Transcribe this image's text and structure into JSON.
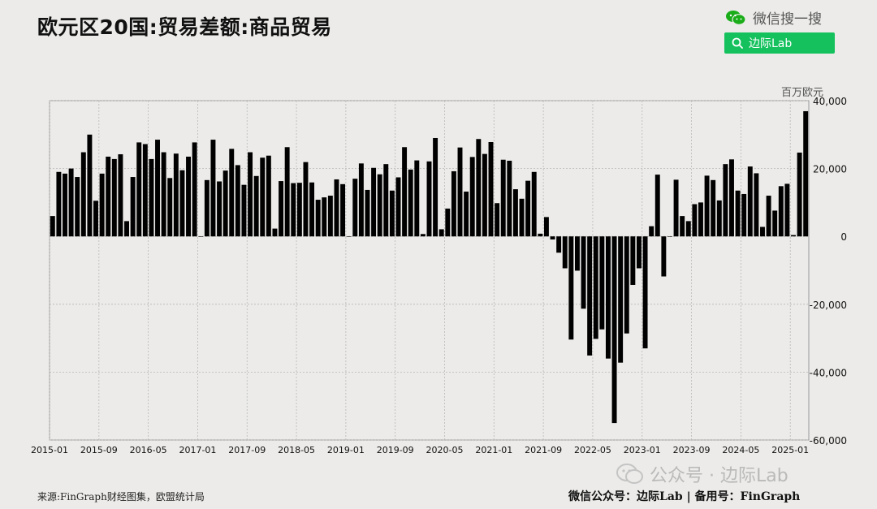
{
  "header": {
    "title": "欧元区20国:贸易差额:商品贸易",
    "wechat_label": "微信搜一搜",
    "search_label": "边际Lab"
  },
  "chart_data": {
    "type": "bar",
    "title": "欧元区20国:贸易差额:商品贸易",
    "unit": "百万欧元",
    "ylim": [
      -60000,
      40000
    ],
    "y_ticks": [
      40000,
      20000,
      0,
      -20000,
      -40000,
      -60000
    ],
    "y_tick_labels": [
      "40,000",
      "20,000",
      "0",
      "-20,000",
      "-40,000",
      "-60,000"
    ],
    "x_tick_labels": [
      "2015-01",
      "2015-09",
      "2016-05",
      "2017-01",
      "2017-09",
      "2018-05",
      "2019-01",
      "2019-09",
      "2020-05",
      "2021-01",
      "2021-09",
      "2022-05",
      "2023-01",
      "2023-09",
      "2024-05",
      "2025-01"
    ],
    "grid": true,
    "x": [
      "2015-01",
      "2015-02",
      "2015-03",
      "2015-04",
      "2015-05",
      "2015-06",
      "2015-07",
      "2015-08",
      "2015-09",
      "2015-10",
      "2015-11",
      "2015-12",
      "2016-01",
      "2016-02",
      "2016-03",
      "2016-04",
      "2016-05",
      "2016-06",
      "2016-07",
      "2016-08",
      "2016-09",
      "2016-10",
      "2016-11",
      "2016-12",
      "2017-01",
      "2017-02",
      "2017-03",
      "2017-04",
      "2017-05",
      "2017-06",
      "2017-07",
      "2017-08",
      "2017-09",
      "2017-10",
      "2017-11",
      "2017-12",
      "2018-01",
      "2018-02",
      "2018-03",
      "2018-04",
      "2018-05",
      "2018-06",
      "2018-07",
      "2018-08",
      "2018-09",
      "2018-10",
      "2018-11",
      "2018-12",
      "2019-01",
      "2019-02",
      "2019-03",
      "2019-04",
      "2019-05",
      "2019-06",
      "2019-07",
      "2019-08",
      "2019-09",
      "2019-10",
      "2019-11",
      "2019-12",
      "2020-01",
      "2020-02",
      "2020-03",
      "2020-04",
      "2020-05",
      "2020-06",
      "2020-07",
      "2020-08",
      "2020-09",
      "2020-10",
      "2020-11",
      "2020-12",
      "2021-01",
      "2021-02",
      "2021-03",
      "2021-04",
      "2021-05",
      "2021-06",
      "2021-07",
      "2021-08",
      "2021-09",
      "2021-10",
      "2021-11",
      "2021-12",
      "2022-01",
      "2022-02",
      "2022-03",
      "2022-04",
      "2022-05",
      "2022-06",
      "2022-07",
      "2022-08",
      "2022-09",
      "2022-10",
      "2022-11",
      "2022-12",
      "2023-01",
      "2023-02",
      "2023-03",
      "2023-04",
      "2023-05",
      "2023-06",
      "2023-07",
      "2023-08",
      "2023-09",
      "2023-10",
      "2023-11",
      "2023-12",
      "2024-01",
      "2024-02",
      "2024-03",
      "2024-04",
      "2024-05",
      "2024-06",
      "2024-07",
      "2024-08",
      "2024-09",
      "2024-10",
      "2024-11",
      "2024-12",
      "2025-01",
      "2025-02",
      "2025-03"
    ],
    "values": [
      6000,
      19000,
      18500,
      20000,
      17500,
      24800,
      30000,
      10500,
      18500,
      23500,
      22800,
      24200,
      4500,
      17500,
      27700,
      27200,
      22800,
      28500,
      24800,
      17200,
      24400,
      19500,
      23500,
      27700,
      0,
      16600,
      28500,
      16200,
      19400,
      25800,
      21000,
      15200,
      24800,
      17800,
      23200,
      23800,
      2300,
      16300,
      26300,
      15700,
      15800,
      21900,
      15900,
      10800,
      11500,
      12000,
      16800,
      15400,
      0,
      17000,
      21500,
      13700,
      20200,
      18300,
      21300,
      13500,
      17400,
      26300,
      19700,
      22400,
      700,
      22100,
      29000,
      2100,
      8200,
      19200,
      26200,
      13200,
      23400,
      28700,
      24300,
      27800,
      9800,
      22600,
      22300,
      13900,
      11100,
      16400,
      19000,
      800,
      5700,
      -900,
      -4800,
      -9400,
      -30400,
      -10100,
      -21300,
      -35100,
      -30200,
      -27400,
      -36000,
      -55000,
      -37200,
      -28600,
      -14300,
      -9400,
      -33000,
      3000,
      18200,
      -11800,
      0,
      16700,
      6000,
      4500,
      9500,
      10000,
      17900,
      16600,
      10600,
      21300,
      22700,
      13500,
      12500,
      20600,
      18600,
      2800,
      12000,
      7600,
      14800,
      15500,
      400,
      24700,
      36900
    ]
  },
  "footer": {
    "watermark_text": "公众号 · 边际Lab",
    "source": "来源:FinGraph财经图集，欧盟统计局",
    "credit": "微信公众号：边际Lab  |  备用号：FinGraph"
  }
}
